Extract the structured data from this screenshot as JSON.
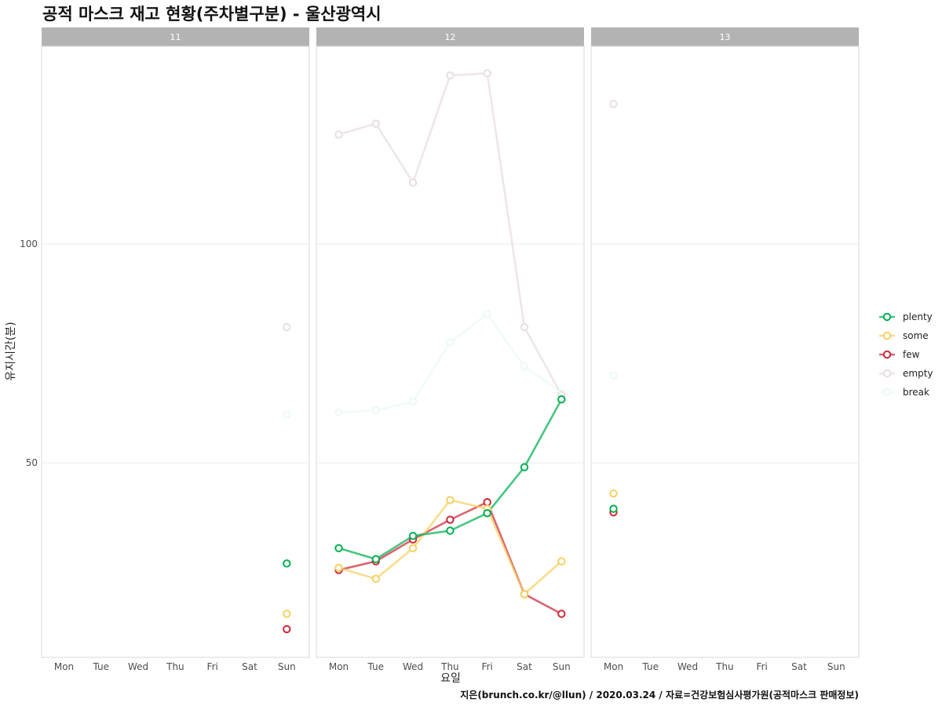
{
  "chart_data": {
    "type": "line",
    "title": "공적 마스크 재고 현황(주차별구분) - 울산광역시",
    "caption": "지은(brunch.co.kr/@llun) / 2020.03.24 / 자료=건강보험심사평가원(공적마스크 판매정보)",
    "xlabel": "요일",
    "ylabel": "유지시간(분)",
    "categories": [
      "Mon",
      "Tue",
      "Wed",
      "Thu",
      "Fri",
      "Sat",
      "Sun"
    ],
    "y_ticks": [
      50,
      100
    ],
    "y_tick_labels": [
      "50",
      "100"
    ],
    "ylim": [
      5,
      145
    ],
    "grid": true,
    "legend_position": "right",
    "facets": [
      {
        "label": "11",
        "series": [
          {
            "name": "plenty",
            "color": "#00b050",
            "values": [
              null,
              null,
              null,
              null,
              null,
              null,
              27
            ]
          },
          {
            "name": "some",
            "color": "#f5d060",
            "values": [
              null,
              null,
              null,
              null,
              null,
              null,
              15.5
            ]
          },
          {
            "name": "few",
            "color": "#cc2838",
            "values": [
              null,
              null,
              null,
              null,
              null,
              null,
              12
            ]
          },
          {
            "name": "empty",
            "color": "#e8dede",
            "values": [
              null,
              null,
              null,
              null,
              null,
              null,
              81
            ]
          },
          {
            "name": "break",
            "color": "#ecf8f8",
            "values": [
              null,
              null,
              null,
              null,
              null,
              null,
              61
            ]
          }
        ]
      },
      {
        "label": "12",
        "series": [
          {
            "name": "plenty",
            "color": "#00b050",
            "values": [
              30.5,
              28,
              33.3,
              34.5,
              38.5,
              49,
              64.5
            ]
          },
          {
            "name": "some",
            "color": "#f5d060",
            "values": [
              26,
              23.5,
              30.5,
              41.5,
              39.5,
              20,
              27.5
            ]
          },
          {
            "name": "few",
            "color": "#cc2838",
            "values": [
              25.5,
              27.5,
              32.5,
              37,
              41,
              20,
              15.5
            ]
          },
          {
            "name": "empty",
            "color": "#e8dede",
            "values": [
              125,
              127.5,
              114,
              138.5,
              139,
              81,
              65.5
            ]
          },
          {
            "name": "break",
            "color": "#ecf8f8",
            "values": [
              61.5,
              62,
              64,
              77.5,
              84,
              72,
              66
            ]
          }
        ]
      },
      {
        "label": "13",
        "series": [
          {
            "name": "plenty",
            "color": "#00b050",
            "values": [
              39.5,
              null,
              null,
              null,
              null,
              null,
              null
            ]
          },
          {
            "name": "some",
            "color": "#f5d060",
            "values": [
              43,
              null,
              null,
              null,
              null,
              null,
              null
            ]
          },
          {
            "name": "few",
            "color": "#cc2838",
            "values": [
              38.7,
              null,
              null,
              null,
              null,
              null,
              null
            ]
          },
          {
            "name": "empty",
            "color": "#e8dede",
            "values": [
              132,
              null,
              null,
              null,
              null,
              null,
              null
            ]
          },
          {
            "name": "break",
            "color": "#ecf8f8",
            "values": [
              70,
              null,
              null,
              null,
              null,
              null,
              null
            ]
          }
        ]
      }
    ],
    "legend": [
      "plenty",
      "some",
      "few",
      "empty",
      "break"
    ]
  }
}
